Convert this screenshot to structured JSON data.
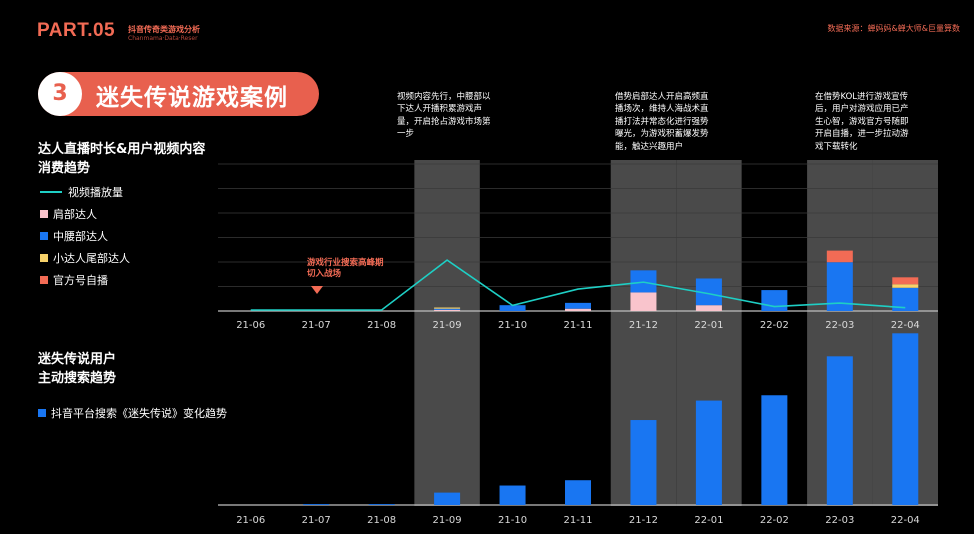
{
  "header": {
    "part": "PART.05",
    "subtitle_cn": "抖音传奇类游戏分析",
    "subtitle_en": "Chanmama·Data·Reser",
    "source": "数据来源：蝉妈妈&蝉大师&巨量算数"
  },
  "section": {
    "number": "3",
    "title": "迷失传说游戏案例"
  },
  "chart1_title_line1": "达人直播时长&用户视频内容",
  "chart1_title_line2": "消费趋势",
  "chart2_title_line1": "迷失传说用户",
  "chart2_title_line2": "主动搜索趋势",
  "legend1": [
    {
      "label": "视频播放量",
      "color": "#1ecfc5",
      "kind": "line"
    },
    {
      "label": "肩部达人",
      "color": "#f9c4cc",
      "kind": "box"
    },
    {
      "label": "中腰部达人",
      "color": "#1976f2",
      "kind": "box"
    },
    {
      "label": "小达人尾部达人",
      "color": "#f7d26a",
      "kind": "box"
    },
    {
      "label": "官方号自播",
      "color": "#f26b55",
      "kind": "box"
    }
  ],
  "legend2": [
    {
      "label": "抖音平台搜索《迷失传说》变化趋势",
      "color": "#1976f2",
      "kind": "box"
    }
  ],
  "annotations": [
    "视频内容先行，中腰部以下达人开播积累游戏声量，开启抢占游戏市场第一步",
    "借势肩部达人开启高频直播场次，维持人海战术直播打法并常态化进行强势曝光，为游戏积蓄爆发势能，触达兴趣用户",
    "在借势KOL进行游戏宣传后，用户对游戏应用已产生心智，游戏官方号随即开启自播，进一步拉动游戏下载转化"
  ],
  "callout": "游戏行业搜索高峰期切入战场",
  "chart_data": [
    {
      "type": "bar",
      "title": "达人直播时长&用户视频内容消费趋势",
      "categories": [
        "21-06",
        "21-07",
        "21-08",
        "21-09",
        "21-10",
        "21-11",
        "21-12",
        "22-01",
        "22-02",
        "22-03",
        "22-04"
      ],
      "highlight_categories": [
        "21-09",
        "21-12",
        "22-01",
        "22-03",
        "22-04"
      ],
      "stacked": true,
      "ylim": [
        0,
        130
      ],
      "grid": true,
      "legend_position": "left",
      "series": [
        {
          "name": "肩部达人",
          "color": "#f9c4cc",
          "values": [
            0,
            0,
            0,
            1,
            0,
            2,
            16,
            5,
            0,
            0,
            0
          ]
        },
        {
          "name": "中腰部达人",
          "color": "#1976f2",
          "values": [
            0,
            0,
            0,
            1,
            5,
            5,
            19,
            23,
            18,
            42,
            20
          ]
        },
        {
          "name": "小达人尾部达人",
          "color": "#f7d26a",
          "values": [
            0,
            0,
            0,
            1,
            0,
            0,
            0,
            0,
            0,
            0,
            3
          ]
        },
        {
          "name": "官方号自播",
          "color": "#f26b55",
          "values": [
            0,
            0,
            0,
            0,
            0,
            0,
            0,
            0,
            0,
            10,
            6
          ]
        }
      ],
      "line_series": {
        "name": "视频播放量",
        "color": "#1ecfc5",
        "values": [
          0,
          0,
          0,
          43,
          4,
          18,
          24,
          14,
          3,
          6,
          2
        ]
      }
    },
    {
      "type": "bar",
      "title": "迷失传说用户主动搜索趋势",
      "categories": [
        "21-06",
        "21-07",
        "21-08",
        "21-09",
        "21-10",
        "21-11",
        "21-12",
        "22-01",
        "22-02",
        "22-03",
        "22-04"
      ],
      "ylim": [
        0,
        100
      ],
      "legend_position": "left",
      "series": [
        {
          "name": "抖音平台搜索《迷失传说》变化趋势",
          "color": "#1976f2",
          "values": [
            0,
            0.5,
            0.5,
            7,
            11,
            14,
            48,
            59,
            62,
            84,
            97
          ]
        }
      ]
    }
  ]
}
